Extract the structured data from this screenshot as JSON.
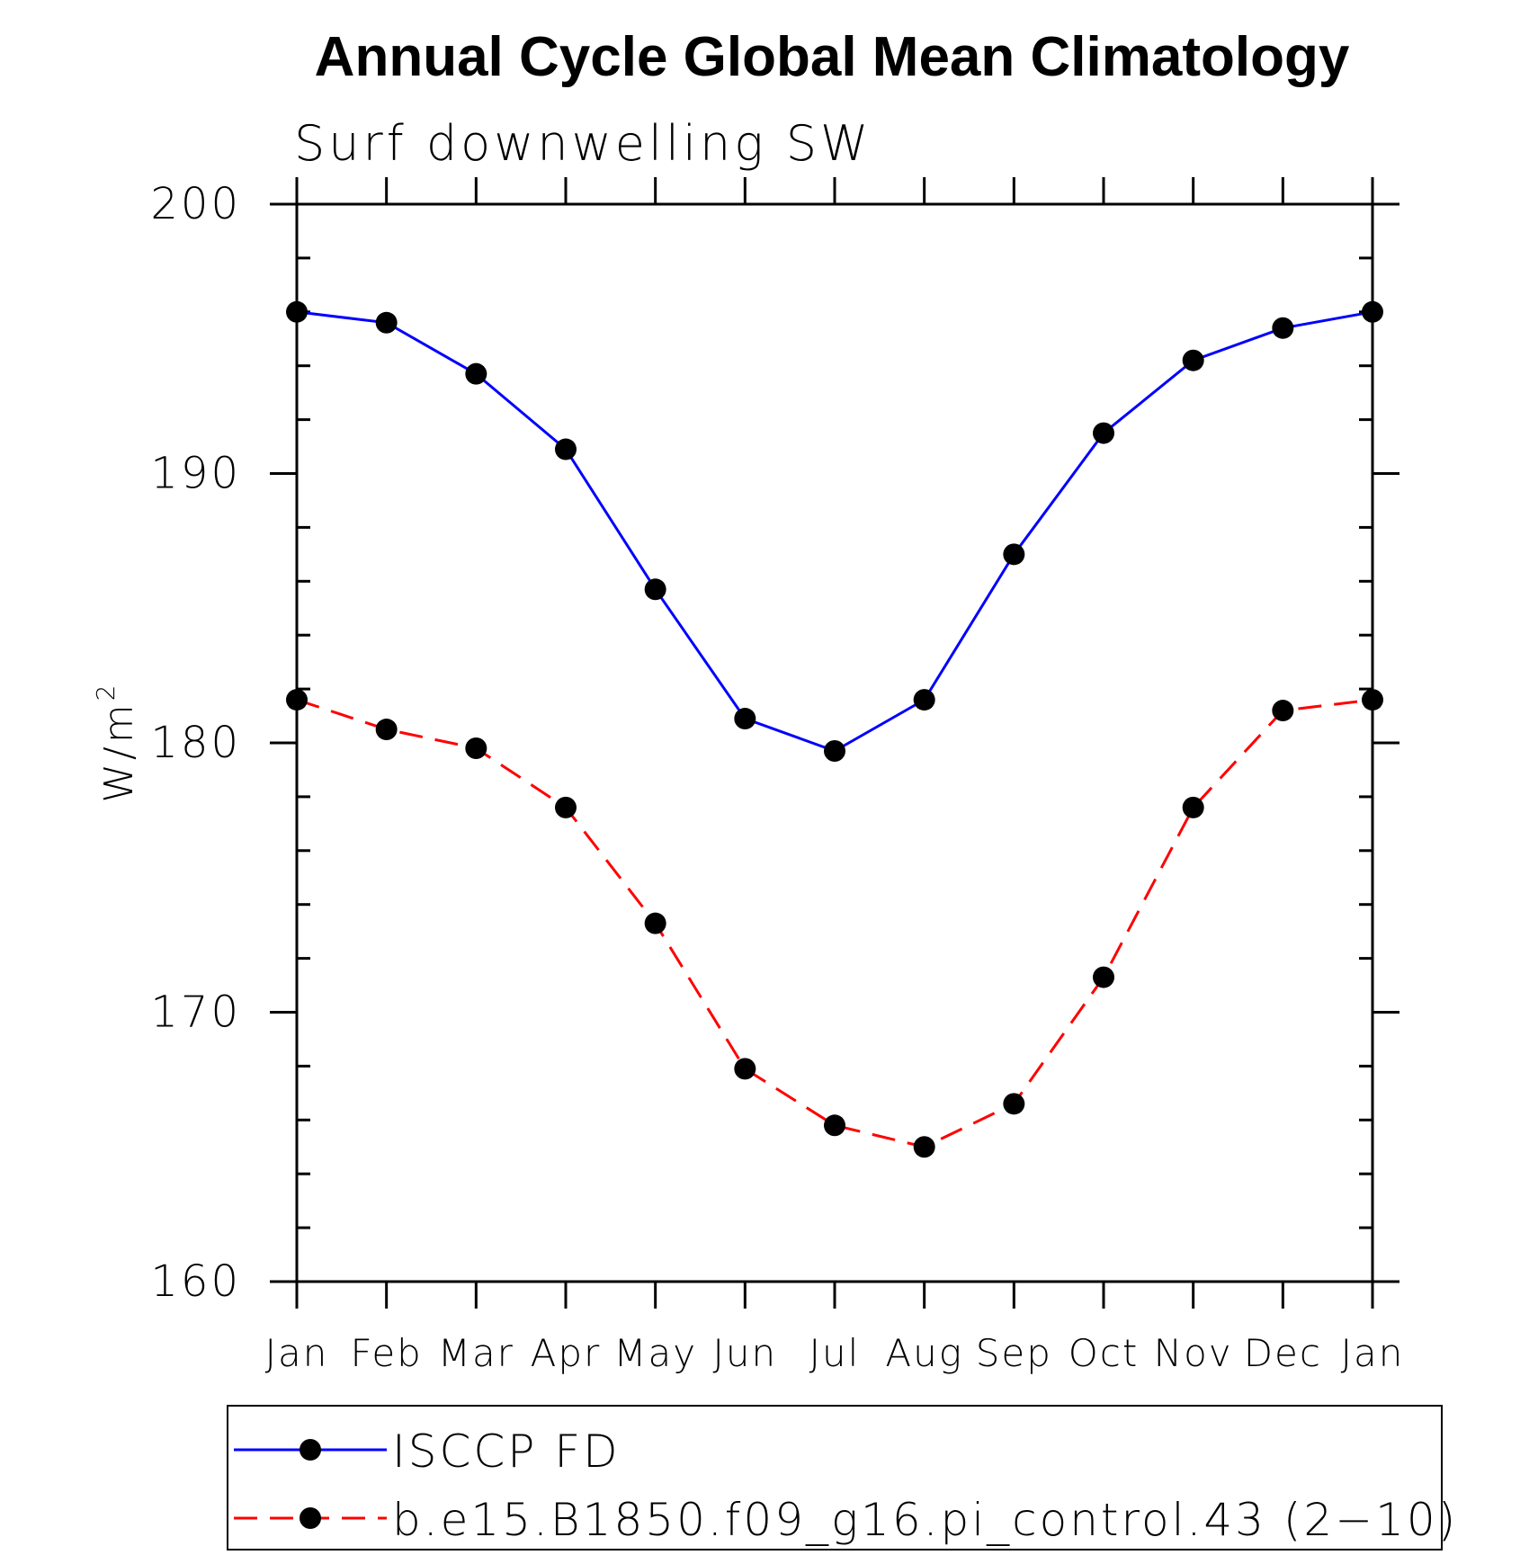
{
  "chart_data": {
    "type": "line",
    "title": "Annual Cycle Global Mean Climatology",
    "subtitle": "Surf downwelling SW",
    "xlabel": "",
    "ylabel": "W/m",
    "ylabel_superscript": "2",
    "categories": [
      "Jan",
      "Feb",
      "Mar",
      "Apr",
      "May",
      "Jun",
      "Jul",
      "Aug",
      "Sep",
      "Oct",
      "Nov",
      "Dec",
      "Jan"
    ],
    "ylim": [
      160,
      200
    ],
    "yticks": [
      160,
      170,
      180,
      190,
      200
    ],
    "ytick_labels": [
      "160",
      "170",
      "180",
      "190",
      "200"
    ],
    "minor_ytick_step": 2,
    "grid": false,
    "legend_position": "bottom",
    "series": [
      {
        "name": "ISCCP FD",
        "color": "#0000ff",
        "dash": "solid",
        "marker": "filled-circle",
        "values": [
          196.0,
          195.6,
          193.7,
          190.9,
          185.7,
          180.9,
          179.7,
          181.6,
          187.0,
          191.5,
          194.2,
          195.4,
          196.0
        ]
      },
      {
        "name": "b.e15.B1850.f09_g16.pi_control.43 (2−10)",
        "color": "#ff0000",
        "dash": "dashed",
        "marker": "filled-circle",
        "values": [
          181.6,
          180.5,
          179.8,
          177.6,
          173.3,
          167.9,
          165.8,
          165.0,
          166.6,
          171.3,
          177.6,
          181.2,
          181.6
        ]
      }
    ]
  }
}
